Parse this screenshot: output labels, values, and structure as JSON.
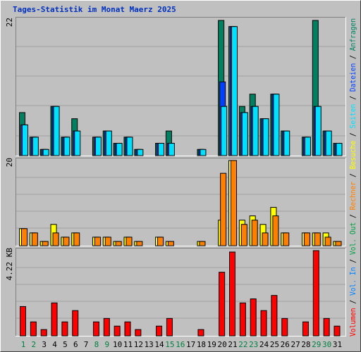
{
  "chart_data": [
    {
      "type": "bar",
      "title": "Tages-Statistik im Monat Maerz 2025",
      "legend_separator": "/",
      "ylim": [
        0,
        22
      ],
      "yticks": [
        22
      ],
      "series": [
        {
          "name": "Anfragen",
          "color": "#008060",
          "values": [
            7,
            3,
            1,
            8,
            3,
            6,
            0,
            3,
            4,
            2,
            3,
            1,
            0,
            2,
            4,
            0,
            0,
            1,
            0,
            22,
            21,
            8,
            10,
            6,
            10,
            4,
            0,
            3,
            22,
            4,
            2
          ]
        },
        {
          "name": "Dateien",
          "color": "#0040ff",
          "values": [
            5,
            3,
            1,
            8,
            3,
            4,
            0,
            3,
            4,
            2,
            3,
            1,
            0,
            2,
            2,
            0,
            0,
            1,
            0,
            12,
            21,
            7,
            8,
            6,
            10,
            4,
            0,
            3,
            8,
            4,
            2
          ]
        },
        {
          "name": "Seiten",
          "color": "#00e0ff",
          "values": [
            5,
            3,
            1,
            8,
            3,
            4,
            0,
            3,
            4,
            2,
            3,
            1,
            0,
            2,
            2,
            0,
            0,
            1,
            0,
            8,
            21,
            7,
            8,
            6,
            10,
            4,
            0,
            3,
            8,
            4,
            2
          ]
        }
      ]
    },
    {
      "type": "bar",
      "ylim": [
        0,
        20
      ],
      "yticks": [
        20
      ],
      "series": [
        {
          "name": "Besuche",
          "color": "#ffff00",
          "values": [
            4,
            3,
            1,
            5,
            2,
            3,
            0,
            2,
            2,
            1,
            2,
            1,
            0,
            2,
            1,
            0,
            0,
            1,
            0,
            6,
            20,
            6,
            7,
            5,
            9,
            3,
            0,
            3,
            3,
            3,
            1
          ]
        },
        {
          "name": "Rechner",
          "color": "#ff8000",
          "values": [
            4,
            3,
            1,
            3,
            2,
            3,
            0,
            2,
            2,
            1,
            2,
            1,
            0,
            2,
            1,
            0,
            0,
            1,
            0,
            17,
            20,
            5,
            6,
            3,
            7,
            3,
            0,
            3,
            3,
            2,
            1
          ]
        }
      ]
    },
    {
      "type": "bar",
      "ylim": [
        0,
        4.22
      ],
      "yticks": [
        {
          "value": 4.22,
          "label": "4.22 KB"
        }
      ],
      "categories": [
        "1",
        "2",
        "3",
        "4",
        "5",
        "6",
        "7",
        "8",
        "9",
        "10",
        "11",
        "12",
        "13",
        "14",
        "15",
        "16",
        "17",
        "18",
        "19",
        "20",
        "21",
        "22",
        "23",
        "24",
        "25",
        "26",
        "27",
        "28",
        "29",
        "30",
        "31"
      ],
      "category_colors": [
        "#008040",
        "#008040",
        "#000000",
        "#000000",
        "#000000",
        "#000000",
        "#000000",
        "#008040",
        "#008040",
        "#000000",
        "#000000",
        "#000000",
        "#000000",
        "#000000",
        "#008040",
        "#008040",
        "#000000",
        "#000000",
        "#000000",
        "#000000",
        "#000000",
        "#008040",
        "#008040",
        "#000000",
        "#000000",
        "#000000",
        "#000000",
        "#000000",
        "#008040",
        "#008040",
        "#000000"
      ],
      "series": [
        {
          "name": "Volumen",
          "color": "#ff0000",
          "values": [
            1.45,
            0.69,
            0.31,
            1.63,
            0.69,
            1.25,
            0,
            0.69,
            0.86,
            0.48,
            0.69,
            0.31,
            0,
            0.48,
            0.86,
            0,
            0,
            0.31,
            0,
            3.15,
            4.15,
            1.63,
            1.83,
            1.25,
            2.0,
            0.86,
            0,
            0.69,
            4.22,
            0.86,
            0.48
          ]
        },
        {
          "name": "Vol. In",
          "color": "#0080ff"
        },
        {
          "name": "Vol. Out",
          "color": "#00a040"
        }
      ]
    }
  ]
}
